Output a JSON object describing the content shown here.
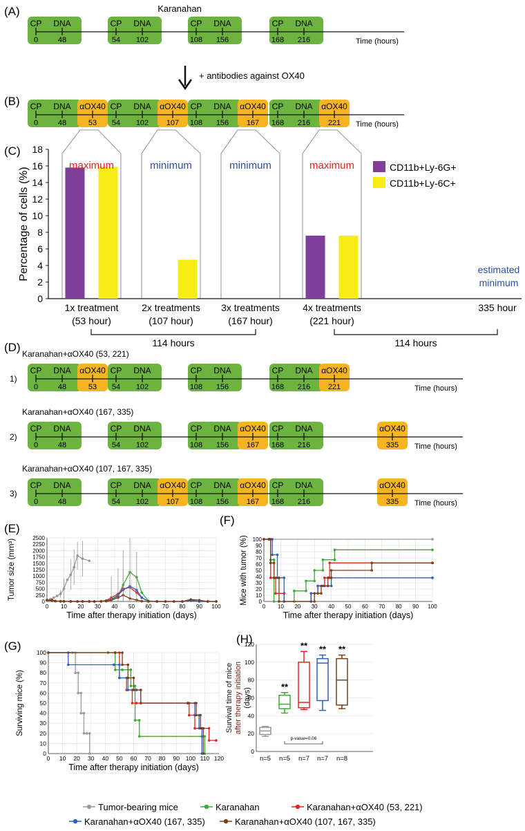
{
  "colors": {
    "green": "#6db33f",
    "orange": "#f6b420",
    "purple": "#7e3f98",
    "yellow": "#f7ec13",
    "red": "#e8231e",
    "blue": "#2b4fa3",
    "gray": "#9a9a9a",
    "sgreen": "#3aab35",
    "sblue": "#2e5fbf",
    "brown": "#7b3f1a"
  },
  "panel_labels": {
    "A": "(A)",
    "B": "(B)",
    "C": "(C)",
    "D": "(D)",
    "E": "(E)",
    "F": "(F)",
    "G": "(G)",
    "H": "(H)"
  },
  "cp": "CP",
  "dna": "DNA",
  "ox": "αOX40",
  "time_axis": "Time (hours)",
  "panelA": {
    "title": "Karanahan",
    "times": [
      [
        "0",
        "48"
      ],
      [
        "54",
        "102"
      ],
      [
        "108",
        "156"
      ],
      [
        "168",
        "216"
      ]
    ]
  },
  "arrow_label": "+ antibodies against OX40",
  "panelB": {
    "times": [
      [
        "0",
        "48"
      ],
      [
        "54",
        "102"
      ],
      [
        "108",
        "156"
      ],
      [
        "168",
        "216"
      ]
    ],
    "ox_times": [
      "53",
      "107",
      "167",
      "221"
    ]
  },
  "panelD": {
    "row1": {
      "num": "1)",
      "title": "Karanahan+αOX40 (53, 221)",
      "ox_times": [
        "53",
        "221"
      ]
    },
    "row2": {
      "num": "2)",
      "title": "Karanahan+αOX40 (167, 335)",
      "ox_times": [
        "167",
        "335"
      ]
    },
    "row3": {
      "num": "3)",
      "title": "Karanahan+αOX40 (107, 167, 335)",
      "ox_times": [
        "107",
        "167",
        "335"
      ]
    }
  },
  "chart_data": [
    {
      "id": "C",
      "type": "bar",
      "ylabel": "Percentage of cells (%)",
      "ylim": [
        0,
        18
      ],
      "yticks": [
        "0",
        "2",
        "4",
        "6",
        "8",
        "10",
        "12",
        "14",
        "16",
        "18"
      ],
      "categories": [
        "1x treatment\n(53 hour)",
        "2x treatments\n(107 hour)",
        "3x treatments\n(167 hour)",
        "4x treatments\n(221 hour)"
      ],
      "series": [
        {
          "name": "CD11b+Ly-6G+",
          "values": [
            15.8,
            0,
            0,
            7.6
          ]
        },
        {
          "name": "CD11b+Ly-6C+",
          "values": [
            15.9,
            4.7,
            0,
            7.6
          ]
        }
      ],
      "annotations": [
        "maximum",
        "minimum",
        "minimum",
        "maximum"
      ],
      "extra_label": "335 hour",
      "estimated": "estimated\nminimum",
      "brackets": [
        "114 hours",
        "114 hours"
      ]
    },
    {
      "id": "E",
      "type": "line",
      "xlabel": "Time after therapy initiation (days)",
      "ylabel": "Tumor size (mm³)",
      "xlim": [
        0,
        100
      ],
      "ylim": [
        0,
        2500
      ],
      "xticks": [
        "0",
        "10",
        "20",
        "30",
        "40",
        "50",
        "60",
        "70",
        "80",
        "90",
        "100"
      ],
      "yticks": [
        "0",
        "250",
        "500",
        "750",
        "1000",
        "1250",
        "1500",
        "1750",
        "2000",
        "2250",
        "2500"
      ],
      "series": [
        {
          "name": "Tumor-bearing mice",
          "x": [
            0,
            2,
            4,
            6,
            8,
            10,
            12,
            14,
            16,
            18,
            21,
            25
          ],
          "y": [
            50,
            90,
            150,
            220,
            300,
            500,
            850,
            1050,
            1350,
            1800,
            1680,
            1600
          ]
        },
        {
          "name": "Karanahan",
          "x": [
            0,
            3,
            5,
            8,
            10,
            14,
            18,
            21,
            25,
            28,
            32,
            35,
            38,
            42,
            45,
            49,
            53,
            56,
            60,
            65,
            70,
            75,
            80,
            85,
            90,
            95,
            100
          ],
          "y": [
            50,
            40,
            20,
            10,
            5,
            5,
            0,
            5,
            0,
            0,
            10,
            20,
            80,
            200,
            650,
            1150,
            950,
            350,
            20,
            5,
            0,
            0,
            0,
            60,
            0,
            0,
            0
          ]
        },
        {
          "name": "Karanahan+αOX40 (53, 221)",
          "x": [
            0,
            3,
            5,
            8,
            10,
            14,
            18,
            21,
            25,
            28,
            32,
            35,
            38,
            42,
            45,
            49,
            53,
            56,
            60,
            65,
            70,
            75,
            80,
            85,
            90,
            95,
            100
          ],
          "y": [
            60,
            60,
            20,
            10,
            5,
            5,
            0,
            5,
            0,
            0,
            10,
            40,
            150,
            300,
            500,
            550,
            350,
            150,
            10,
            0,
            0,
            0,
            0,
            40,
            0,
            0,
            0
          ]
        },
        {
          "name": "Karanahan+αOX40 (167, 335)",
          "x": [
            0,
            3,
            5,
            8,
            10,
            14,
            18,
            21,
            25,
            28,
            32,
            35,
            38,
            42,
            45,
            49,
            53,
            56,
            60,
            65,
            70,
            75,
            80,
            85,
            90,
            95,
            100
          ],
          "y": [
            40,
            30,
            10,
            5,
            5,
            0,
            0,
            0,
            0,
            0,
            5,
            20,
            80,
            250,
            450,
            600,
            450,
            150,
            5,
            0,
            0,
            0,
            0,
            30,
            0,
            0,
            0
          ]
        },
        {
          "name": "Karanahan+αOX40 (107, 167, 335)",
          "x": [
            0,
            3,
            5,
            8,
            10,
            14,
            18,
            21,
            25,
            28,
            32,
            35,
            38,
            42,
            45,
            49,
            53,
            56,
            60,
            65,
            70,
            75,
            80,
            85,
            90,
            95,
            100
          ],
          "y": [
            50,
            40,
            15,
            5,
            5,
            0,
            0,
            0,
            0,
            0,
            5,
            10,
            50,
            150,
            250,
            120,
            60,
            10,
            0,
            0,
            0,
            0,
            0,
            80,
            50,
            0,
            0
          ]
        }
      ]
    },
    {
      "id": "F",
      "type": "line",
      "xlabel": "Time after therapy initiation (days)",
      "ylabel": "Mice with tumor (%)",
      "xlim": [
        0,
        100
      ],
      "ylim": [
        0,
        100
      ],
      "xticks": [
        "0",
        "10",
        "20",
        "30",
        "40",
        "50",
        "60",
        "70",
        "80",
        "90",
        "100"
      ],
      "yticks": [
        "0",
        "10",
        "20",
        "30",
        "40",
        "50",
        "60",
        "70",
        "80",
        "90",
        "100"
      ],
      "series": [
        {
          "name": "Tumor-bearing mice",
          "x": [
            0,
            100
          ],
          "y": [
            100,
            100
          ]
        },
        {
          "name": "Karanahan",
          "x": [
            0,
            3,
            4,
            6,
            12,
            18,
            25,
            30,
            35,
            42,
            100
          ],
          "y": [
            100,
            100,
            67,
            0,
            0,
            17,
            33,
            50,
            67,
            83,
            83
          ]
        },
        {
          "name": "Karanahan+αOX40 (53, 221)",
          "x": [
            0,
            3,
            4,
            7,
            12,
            28,
            32,
            36,
            39,
            100
          ],
          "y": [
            100,
            100,
            38,
            13,
            0,
            13,
            25,
            38,
            62,
            62
          ]
        },
        {
          "name": "Karanahan+αOX40 (167, 335)",
          "x": [
            0,
            3,
            5,
            8,
            12,
            28,
            32,
            35,
            38,
            40,
            100
          ],
          "y": [
            100,
            100,
            75,
            38,
            0,
            13,
            25,
            25,
            25,
            38,
            38
          ]
        },
        {
          "name": "Karanahan+αOX40 (107, 167, 335)",
          "x": [
            0,
            3,
            4,
            6,
            9,
            30,
            34,
            38,
            40,
            64,
            100
          ],
          "y": [
            100,
            100,
            62,
            38,
            0,
            13,
            25,
            38,
            50,
            62,
            62
          ]
        }
      ]
    },
    {
      "id": "G",
      "type": "line",
      "xlabel": "Time after therapy initiation (days)",
      "ylabel": "Surviving mice (%)",
      "xlim": [
        0,
        120
      ],
      "ylim": [
        0,
        100
      ],
      "xticks": [
        "0",
        "10",
        "20",
        "30",
        "40",
        "50",
        "60",
        "70",
        "80",
        "90",
        "100",
        "110",
        "120"
      ],
      "yticks": [
        "0",
        "10",
        "20",
        "30",
        "40",
        "50",
        "60",
        "70",
        "80",
        "90",
        "100"
      ],
      "series": [
        {
          "name": "Tumor-bearing mice",
          "x": [
            0,
            17,
            19,
            21,
            23,
            25,
            27,
            29
          ],
          "y": [
            100,
            100,
            80,
            60,
            40,
            20,
            20,
            0
          ]
        },
        {
          "name": "Karanahan",
          "x": [
            0,
            42,
            47,
            52,
            58,
            61,
            64,
            108,
            110
          ],
          "y": [
            100,
            100,
            83,
            83,
            67,
            33,
            17,
            17,
            0
          ]
        },
        {
          "name": "Karanahan+αOX40 (53, 221)",
          "x": [
            0,
            47,
            50,
            55,
            59,
            62,
            99,
            103,
            108,
            113,
            118
          ],
          "y": [
            100,
            100,
            75,
            63,
            50,
            50,
            38,
            25,
            25,
            13,
            13
          ]
        },
        {
          "name": "Karanahan+αOX40 (167, 335)",
          "x": [
            0,
            14,
            46,
            50,
            56,
            62,
            65,
            98,
            103,
            106,
            108
          ],
          "y": [
            100,
            88,
            88,
            75,
            63,
            63,
            50,
            50,
            38,
            25,
            0
          ]
        },
        {
          "name": "Karanahan+αOX40 (107, 167, 335)",
          "x": [
            0,
            47,
            52,
            56,
            60,
            65,
            98,
            104,
            107,
            109
          ],
          "y": [
            100,
            100,
            88,
            75,
            63,
            50,
            50,
            38,
            25,
            0
          ]
        }
      ]
    },
    {
      "id": "H",
      "type": "box",
      "ylabel": "Survival time  of mice\nafter therapy initiation\n(days)",
      "ylim": [
        0,
        120
      ],
      "yticks": [
        "0",
        "20",
        "40",
        "60",
        "80",
        "100",
        "120"
      ],
      "categories": [
        "n=5",
        "n=5",
        "n=7",
        "n=7",
        "n=8"
      ],
      "boxes": [
        {
          "name": "Tumor-bearing mice",
          "min": 17,
          "q1": 19,
          "median": 23,
          "q3": 27,
          "max": 28,
          "sig": ""
        },
        {
          "name": "Karanahan",
          "min": 43,
          "q1": 48,
          "median": 53,
          "q3": 63,
          "max": 66,
          "sig": "**"
        },
        {
          "name": "Karanahan+αOX40 (53, 221)",
          "min": 47,
          "q1": 49,
          "median": 55,
          "q3": 100,
          "max": 112,
          "sig": "**"
        },
        {
          "name": "Karanahan+αOX40 (167, 335)",
          "min": 46,
          "q1": 57,
          "median": 99,
          "q3": 104,
          "max": 108,
          "sig": "**"
        },
        {
          "name": "Karanahan+αOX40 (107, 167, 335)",
          "min": 48,
          "q1": 52,
          "median": 80,
          "q3": 104,
          "max": 108,
          "sig": "**"
        }
      ],
      "pvalue": "p-value=0.06"
    }
  ],
  "legend": [
    "Tumor-bearing mice",
    "Karanahan",
    "Karanahan+αOX40 (53, 221)",
    "Karanahan+αOX40 (167, 335)",
    "Karanahan+αOX40 (107, 167, 335)"
  ]
}
